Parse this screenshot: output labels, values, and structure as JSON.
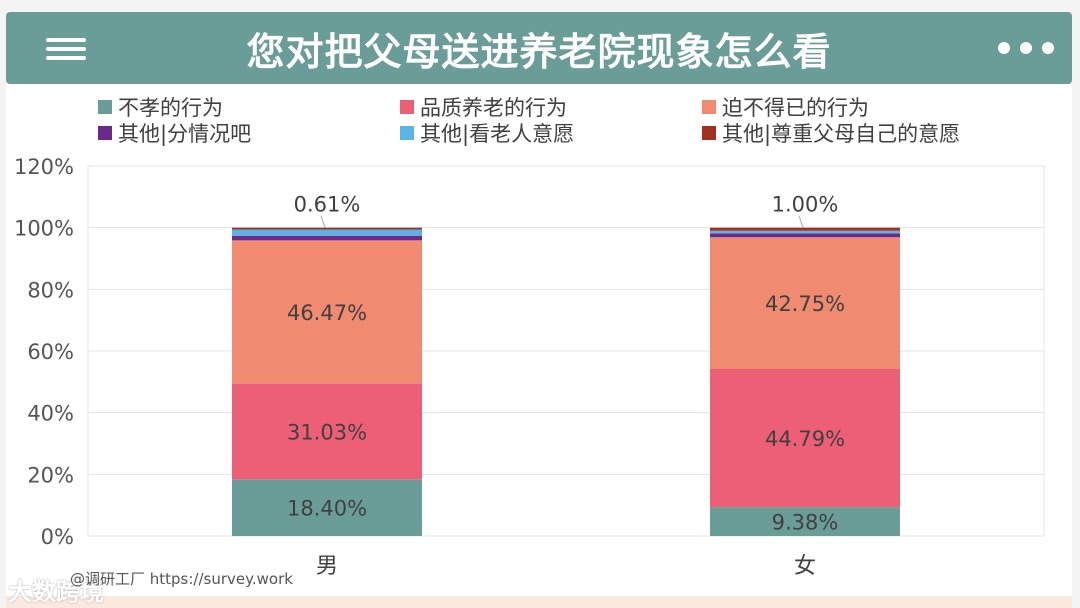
{
  "header": {
    "title": "您对把父母送进养老院现象怎么看",
    "menu_icon": "hamburger-menu-icon",
    "more_icon": "more-dots-icon"
  },
  "watermark": {
    "source": "@调研工厂 https://survey.work",
    "brand": "大数跨境"
  },
  "chart_data": {
    "type": "bar",
    "stacked": true,
    "categories": [
      "男",
      "女"
    ],
    "yticks": [
      "0%",
      "20%",
      "40%",
      "60%",
      "80%",
      "100%",
      "120%"
    ],
    "ylim": [
      0,
      120
    ],
    "grid": true,
    "legend_position": "top",
    "series": [
      {
        "name": "不孝的行为",
        "color": "#6a9d98",
        "values": [
          18.4,
          9.38
        ],
        "labels": [
          "18.40%",
          "9.38%"
        ]
      },
      {
        "name": "品质养老的行为",
        "color": "#ec5f76",
        "values": [
          31.03,
          44.79
        ],
        "labels": [
          "31.03%",
          "44.79%"
        ]
      },
      {
        "name": "迫不得已的行为",
        "color": "#f08a70",
        "values": [
          46.47,
          42.75
        ],
        "labels": [
          "46.47%",
          "42.75%"
        ]
      },
      {
        "name": "其他|分情况吧",
        "color": "#6a2a8c",
        "values": [
          1.5,
          1.2
        ],
        "labels": [
          "",
          ""
        ]
      },
      {
        "name": "其他|看老人意愿",
        "color": "#5ab4e5",
        "values": [
          2.0,
          0.9
        ],
        "labels": [
          "",
          ""
        ]
      },
      {
        "name": "其他|尊重父母自己的意愿",
        "color": "#a33120",
        "values": [
          0.61,
          1.0
        ],
        "labels": [
          "0.61%",
          "1.00%"
        ]
      }
    ]
  }
}
